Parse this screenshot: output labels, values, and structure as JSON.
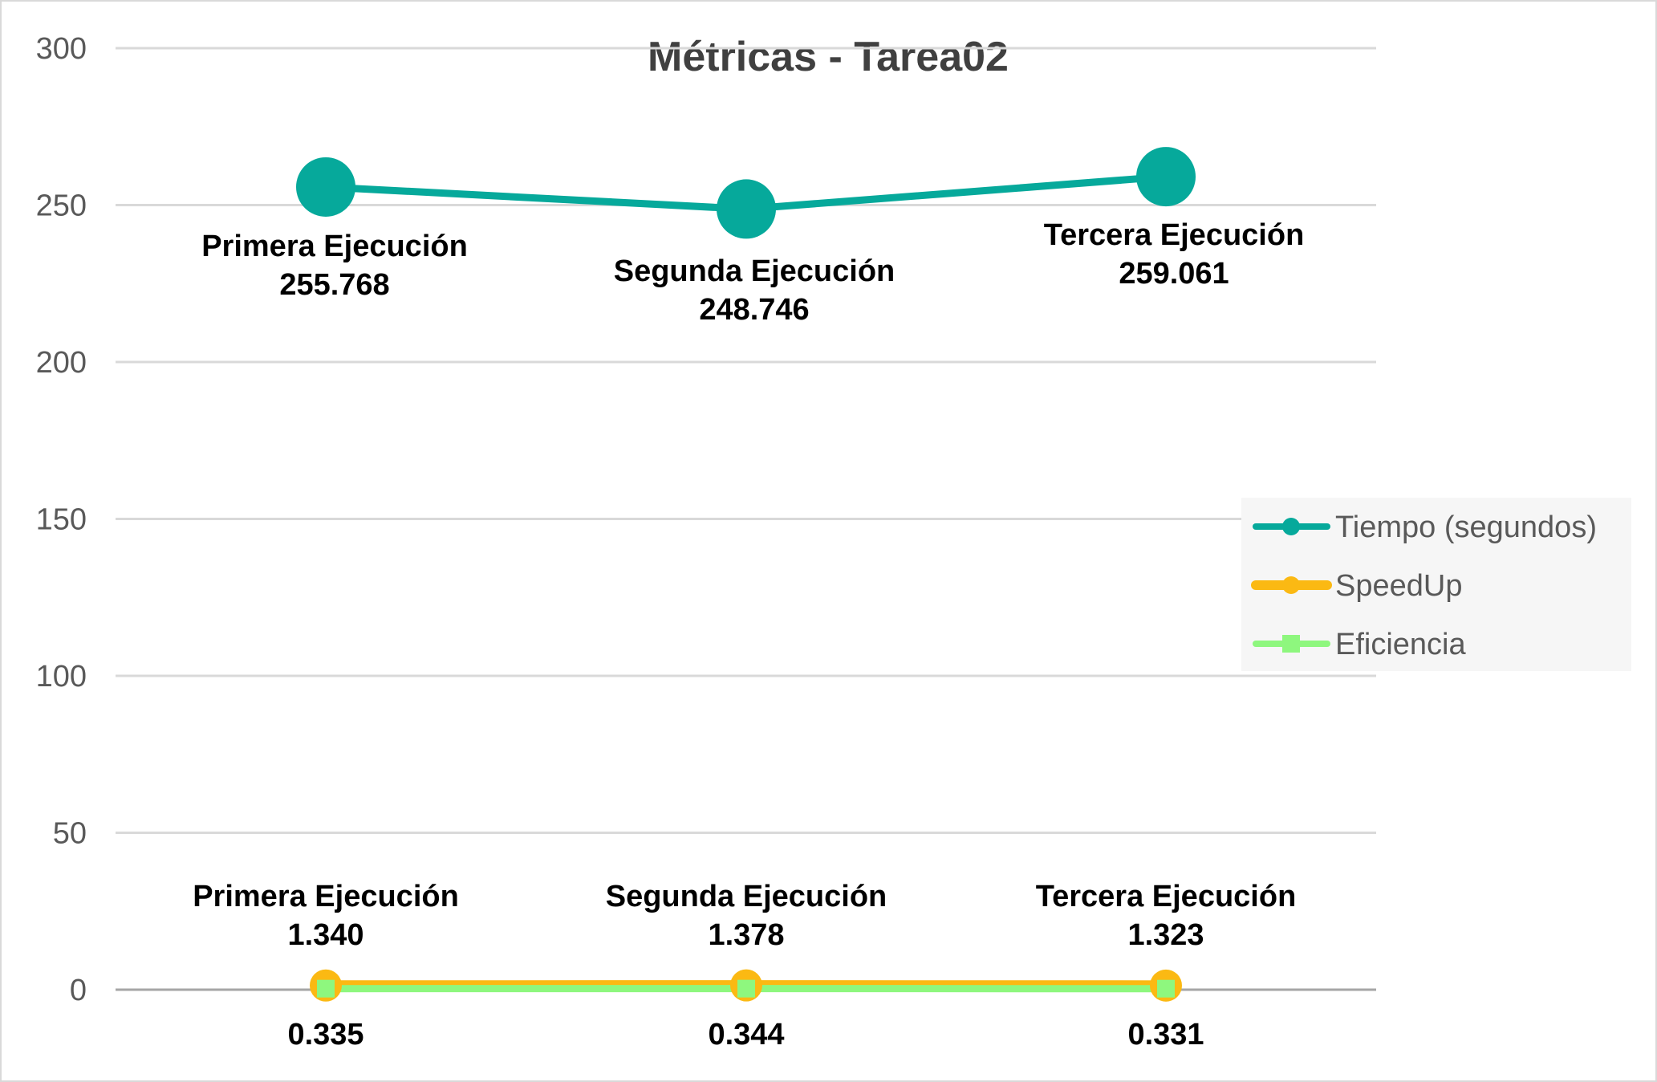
{
  "chart_data": {
    "type": "line",
    "title": "Métricas - Tarea02",
    "xlabel": "",
    "ylabel": "",
    "ylim": [
      0,
      300
    ],
    "yticks": [
      0,
      50,
      100,
      150,
      200,
      250,
      300
    ],
    "grid": true,
    "legend_position": "right",
    "categories": [
      "Primera Ejecución",
      "Segunda Ejecución",
      "Tercera Ejecución"
    ],
    "series": [
      {
        "name": "Tiempo (segundos)",
        "color": "#06a99b",
        "marker": "circle",
        "values": [
          255.768,
          248.746,
          259.061
        ],
        "labels": [
          "255.768",
          "248.746",
          "259.061"
        ]
      },
      {
        "name": "SpeedUp",
        "color": "#fbb913",
        "marker": "circle",
        "values": [
          1.34,
          1.378,
          1.323
        ],
        "labels": [
          "1.340",
          "1.378",
          "1.323"
        ]
      },
      {
        "name": "Eficiencia",
        "color": "#8ef77e",
        "marker": "square",
        "values": [
          0.335,
          0.344,
          0.331
        ],
        "labels": [
          "0.335",
          "0.344",
          "0.331"
        ]
      }
    ]
  }
}
